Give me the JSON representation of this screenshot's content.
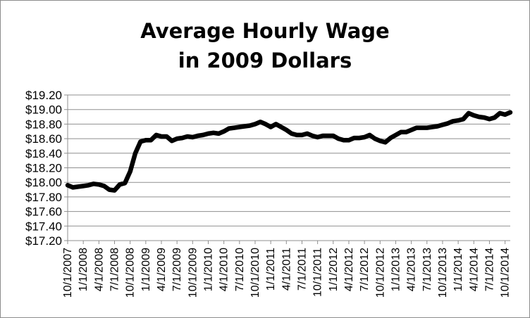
{
  "chart_data": {
    "type": "line",
    "title_lines": [
      "Average Hourly Wage",
      "in 2009 Dollars"
    ],
    "xlabel": "",
    "ylabel": "",
    "ylim": [
      17.2,
      19.2
    ],
    "y_ticks": [
      "$17.20",
      "$17.40",
      "$17.60",
      "$17.80",
      "$18.00",
      "$18.20",
      "$18.40",
      "$18.60",
      "$18.80",
      "$19.00",
      "$19.20"
    ],
    "x_ticks": [
      "10/1/2007",
      "1/1/2008",
      "4/1/2008",
      "7/1/2008",
      "10/1/2008",
      "1/1/2009",
      "4/1/2009",
      "7/1/2009",
      "10/1/2009",
      "1/1/2010",
      "4/1/2010",
      "7/1/2010",
      "10/1/2010",
      "1/1/2011",
      "4/1/2011",
      "7/1/2011",
      "10/1/2011",
      "1/1/2012",
      "4/1/2012",
      "7/1/2012",
      "10/1/2012",
      "1/1/2013",
      "4/1/2013",
      "7/1/2013",
      "10/1/2013",
      "1/1/2014",
      "4/1/2014",
      "7/1/2014",
      "10/1/2014"
    ],
    "grid": true,
    "legend": "none",
    "line_color": "#000000",
    "series": [
      {
        "x": [
          "2007-10",
          "2007-11",
          "2007-12",
          "2008-01",
          "2008-02",
          "2008-03",
          "2008-04",
          "2008-05",
          "2008-06",
          "2008-07",
          "2008-08",
          "2008-09",
          "2008-10",
          "2008-11",
          "2008-12",
          "2009-01",
          "2009-02",
          "2009-03",
          "2009-04",
          "2009-05",
          "2009-06",
          "2009-07",
          "2009-08",
          "2009-09",
          "2009-10",
          "2009-11",
          "2009-12",
          "2010-01",
          "2010-02",
          "2010-03",
          "2010-04",
          "2010-05",
          "2010-06",
          "2010-07",
          "2010-08",
          "2010-09",
          "2010-10",
          "2010-11",
          "2010-12",
          "2011-01",
          "2011-02",
          "2011-03",
          "2011-04",
          "2011-05",
          "2011-06",
          "2011-07",
          "2011-08",
          "2011-09",
          "2011-10",
          "2011-11",
          "2011-12",
          "2012-01",
          "2012-02",
          "2012-03",
          "2012-04",
          "2012-05",
          "2012-06",
          "2012-07",
          "2012-08",
          "2012-09",
          "2012-10",
          "2012-11",
          "2012-12",
          "2013-01",
          "2013-02",
          "2013-03",
          "2013-04",
          "2013-05",
          "2013-06",
          "2013-07",
          "2013-08",
          "2013-09",
          "2013-10",
          "2013-11",
          "2013-12",
          "2014-01",
          "2014-02",
          "2014-03",
          "2014-04",
          "2014-05",
          "2014-06",
          "2014-07",
          "2014-08",
          "2014-09",
          "2014-10",
          "2014-11"
        ],
        "values": [
          17.96,
          17.93,
          17.94,
          17.95,
          17.96,
          17.98,
          17.97,
          17.95,
          17.9,
          17.89,
          17.97,
          17.99,
          18.15,
          18.4,
          18.56,
          18.58,
          18.58,
          18.65,
          18.63,
          18.63,
          18.57,
          18.6,
          18.61,
          18.63,
          18.62,
          18.64,
          18.65,
          18.67,
          18.68,
          18.67,
          18.7,
          18.74,
          18.75,
          18.76,
          18.77,
          18.78,
          18.8,
          18.83,
          18.8,
          18.76,
          18.8,
          18.76,
          18.72,
          18.67,
          18.65,
          18.65,
          18.67,
          18.64,
          18.62,
          18.64,
          18.64,
          18.64,
          18.6,
          18.58,
          18.58,
          18.61,
          18.61,
          18.62,
          18.65,
          18.6,
          18.57,
          18.55,
          18.61,
          18.65,
          18.69,
          18.69,
          18.72,
          18.75,
          18.75,
          18.75,
          18.76,
          18.77,
          18.79,
          18.81,
          18.84,
          18.85,
          18.87,
          18.95,
          18.92,
          18.9,
          18.89,
          18.87,
          18.89,
          18.95,
          18.93,
          18.96
        ]
      }
    ]
  }
}
